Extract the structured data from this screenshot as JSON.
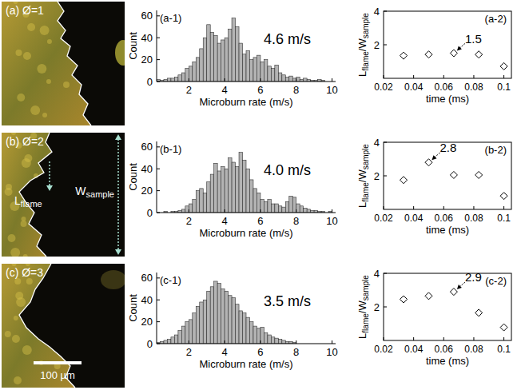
{
  "images": [
    {
      "label": "(a) Ø=1"
    },
    {
      "label": "(b) Ø=2",
      "annotations": [
        {
          "parts": [
            {
              "text": "L"
            },
            {
              "text": "flame",
              "sub": true
            }
          ]
        },
        {
          "parts": [
            {
              "text": "W"
            },
            {
              "text": "sample",
              "sub": true
            }
          ]
        }
      ]
    },
    {
      "label": "(c) Ø=3",
      "scale_bar": "100 µm"
    }
  ],
  "chart_data": [
    {
      "type": "histogram",
      "panel_label": "(a-1)",
      "xlabel": "Microburn rate (m/s)",
      "ylabel": "Count",
      "annotations": [
        {
          "text": "4.6 m/s"
        }
      ],
      "bins": [
        0.2,
        0.4,
        0.6,
        0.8,
        1.0,
        1.2,
        1.4,
        1.6,
        1.8,
        2.0,
        2.2,
        2.4,
        2.6,
        2.8,
        3.0,
        3.2,
        3.4,
        3.6,
        3.8,
        4.0,
        4.2,
        4.4,
        4.6,
        4.8,
        5.0,
        5.2,
        5.4,
        5.6,
        5.8,
        6.0,
        6.2,
        6.4,
        6.6,
        6.8,
        7.0,
        7.2,
        7.4,
        7.6,
        7.8,
        8.0,
        8.2,
        8.4,
        8.6,
        8.8,
        9.0,
        9.2,
        9.4,
        9.6,
        9.8,
        10.0
      ],
      "counts": [
        2,
        1,
        2,
        3,
        3,
        4,
        6,
        8,
        12,
        14,
        18,
        22,
        30,
        40,
        52,
        45,
        42,
        35,
        38,
        40,
        48,
        58,
        50,
        35,
        25,
        28,
        20,
        22,
        24,
        18,
        20,
        14,
        12,
        15,
        8,
        6,
        4,
        5,
        3,
        4,
        2,
        3,
        2,
        1,
        1,
        2,
        1,
        0,
        0
      ],
      "color": "#b4b4b4",
      "xlim": [
        0.2,
        10.2
      ],
      "ylim": [
        0,
        65
      ],
      "xticks": [
        2,
        4,
        6,
        8,
        10
      ],
      "yticks": [
        0,
        20,
        40,
        60
      ]
    },
    {
      "type": "scatter",
      "panel_label": "(a-2)",
      "xlabel": "time (ms)",
      "ylabel": [
        {
          "text": "L"
        },
        {
          "text": "flame",
          "sub": true
        },
        {
          "text": "/W"
        },
        {
          "text": "sample",
          "sub": true
        }
      ],
      "x": [
        0.0333,
        0.05,
        0.0667,
        0.0833,
        0.1
      ],
      "values": [
        1.35,
        1.42,
        1.5,
        1.42,
        0.72
      ],
      "marker": "diamond",
      "xlim": [
        0.02,
        0.105
      ],
      "ylim": [
        0,
        4
      ],
      "xticks": [
        0.02,
        0.04,
        0.06,
        0.08,
        0.1
      ],
      "yticks": [
        2,
        4
      ],
      "annotations": [
        {
          "text": "1.5",
          "x": 0.0667,
          "y": 1.5
        }
      ]
    },
    {
      "type": "histogram",
      "panel_label": "(b-1)",
      "xlabel": "Microburn rate (m/s)",
      "ylabel": "Count",
      "annotations": [
        {
          "text": "4.0 m/s"
        }
      ],
      "bins": [
        0.2,
        0.4,
        0.6,
        0.8,
        1.0,
        1.2,
        1.4,
        1.6,
        1.8,
        2.0,
        2.2,
        2.4,
        2.6,
        2.8,
        3.0,
        3.2,
        3.4,
        3.6,
        3.8,
        4.0,
        4.2,
        4.4,
        4.6,
        4.8,
        5.0,
        5.2,
        5.4,
        5.6,
        5.8,
        6.0,
        6.2,
        6.4,
        6.6,
        6.8,
        7.0,
        7.2,
        7.4,
        7.6,
        7.8,
        8.0,
        8.2,
        8.4,
        8.6,
        8.8,
        9.0,
        9.2,
        9.4,
        9.6,
        9.8,
        10.0
      ],
      "counts": [
        0,
        0,
        1,
        0,
        1,
        1,
        2,
        3,
        6,
        8,
        12,
        20,
        22,
        18,
        28,
        35,
        45,
        38,
        42,
        40,
        50,
        46,
        42,
        55,
        48,
        40,
        30,
        22,
        18,
        12,
        10,
        12,
        8,
        8,
        6,
        5,
        10,
        15,
        14,
        8,
        6,
        4,
        3,
        2,
        2,
        1,
        1,
        0,
        1
      ],
      "color": "#b4b4b4",
      "xlim": [
        0.2,
        10.2
      ],
      "ylim": [
        0,
        65
      ],
      "xticks": [
        2,
        4,
        6,
        8,
        10
      ],
      "yticks": [
        0,
        20,
        40,
        60
      ]
    },
    {
      "type": "scatter",
      "panel_label": "(b-2)",
      "xlabel": "time (ms)",
      "ylabel": [
        {
          "text": "L"
        },
        {
          "text": "flame",
          "sub": true
        },
        {
          "text": "/W"
        },
        {
          "text": "sample",
          "sub": true
        }
      ],
      "x": [
        0.0333,
        0.05,
        0.0667,
        0.0833,
        0.1
      ],
      "values": [
        1.75,
        2.8,
        2.05,
        2.05,
        0.8
      ],
      "marker": "diamond",
      "xlim": [
        0.02,
        0.105
      ],
      "ylim": [
        0,
        4
      ],
      "xticks": [
        0.02,
        0.04,
        0.06,
        0.08,
        0.1
      ],
      "yticks": [
        2,
        4
      ],
      "annotations": [
        {
          "text": "2.8",
          "x": 0.05,
          "y": 2.8
        }
      ]
    },
    {
      "type": "histogram",
      "panel_label": "(c-1)",
      "xlabel": "Microburn rate (m/s)",
      "ylabel": "Count",
      "annotations": [
        {
          "text": "3.5 m/s"
        }
      ],
      "bins": [
        0.2,
        0.4,
        0.6,
        0.8,
        1.0,
        1.2,
        1.4,
        1.6,
        1.8,
        2.0,
        2.2,
        2.4,
        2.6,
        2.8,
        3.0,
        3.2,
        3.4,
        3.6,
        3.8,
        4.0,
        4.2,
        4.4,
        4.6,
        4.8,
        5.0,
        5.2,
        5.4,
        5.6,
        5.8,
        6.0,
        6.2,
        6.4,
        6.6,
        6.8,
        7.0,
        7.2,
        7.4,
        7.6,
        7.8,
        8.0,
        8.2,
        8.4,
        8.6,
        8.8,
        9.0,
        9.2,
        9.4,
        9.6,
        9.8,
        10.0
      ],
      "counts": [
        1,
        2,
        3,
        4,
        6,
        8,
        12,
        16,
        20,
        22,
        28,
        34,
        38,
        40,
        48,
        52,
        57,
        55,
        50,
        48,
        44,
        42,
        36,
        30,
        28,
        24,
        20,
        16,
        14,
        15,
        10,
        8,
        6,
        5,
        4,
        3,
        2,
        2,
        1,
        0,
        0,
        0,
        0,
        0,
        0,
        0,
        0,
        0,
        0
      ],
      "color": "#b4b4b4",
      "xlim": [
        0.2,
        10.2
      ],
      "ylim": [
        0,
        65
      ],
      "xticks": [
        2,
        4,
        6,
        8,
        10
      ],
      "yticks": [
        0,
        20,
        40,
        60
      ]
    },
    {
      "type": "scatter",
      "panel_label": "(c-2)",
      "xlabel": "time (ms)",
      "ylabel": [
        {
          "text": "L"
        },
        {
          "text": "flame",
          "sub": true
        },
        {
          "text": "/W"
        },
        {
          "text": "sample",
          "sub": true
        }
      ],
      "x": [
        0.0333,
        0.05,
        0.0667,
        0.0833,
        0.1
      ],
      "values": [
        2.45,
        2.65,
        2.9,
        1.65,
        0.78
      ],
      "marker": "diamond",
      "xlim": [
        0.02,
        0.105
      ],
      "ylim": [
        0,
        4
      ],
      "xticks": [
        0.02,
        0.04,
        0.06,
        0.08,
        0.1
      ],
      "yticks": [
        2,
        4
      ],
      "annotations": [
        {
          "text": "2.9",
          "x": 0.0667,
          "y": 2.9
        }
      ]
    }
  ]
}
